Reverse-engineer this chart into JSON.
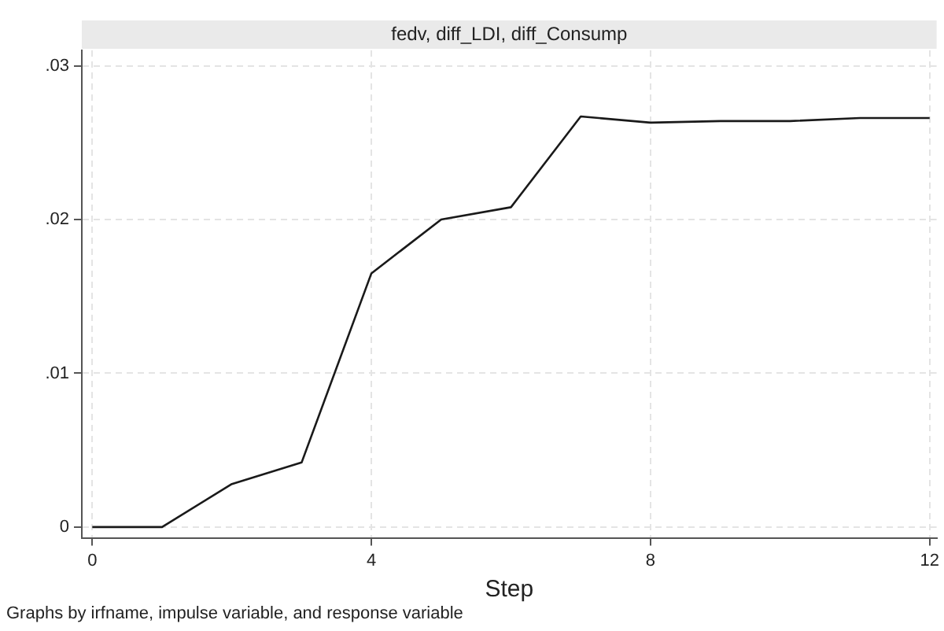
{
  "chart_data": {
    "type": "line",
    "title": "fedv, diff_LDI, diff_Consump",
    "xlabel": "Step",
    "annotations": [
      "Graphs by irfname, impulse variable, and response variable"
    ],
    "x": [
      0,
      1,
      2,
      3,
      4,
      5,
      6,
      7,
      8,
      9,
      10,
      11,
      12
    ],
    "series": [
      {
        "color": "#1a1a1a",
        "values": [
          0,
          0,
          0.0028,
          0.0042,
          0.0165,
          0.02,
          0.0208,
          0.0267,
          0.0263,
          0.0264,
          0.0264,
          0.0266,
          0.0266
        ]
      }
    ],
    "xlim": [
      -0.15,
      12.1
    ],
    "xticks": [
      0,
      4,
      8,
      12
    ],
    "ylim": [
      -0.0007,
      0.031
    ],
    "yticks": [
      {
        "value": 0,
        "label": "0"
      },
      {
        "value": 0.01,
        "label": ".01"
      },
      {
        "value": 0.02,
        "label": ".02"
      },
      {
        "value": 0.03,
        "label": ".03"
      }
    ],
    "grid": true,
    "legend": false,
    "marker": "none",
    "line_style": "solid"
  }
}
